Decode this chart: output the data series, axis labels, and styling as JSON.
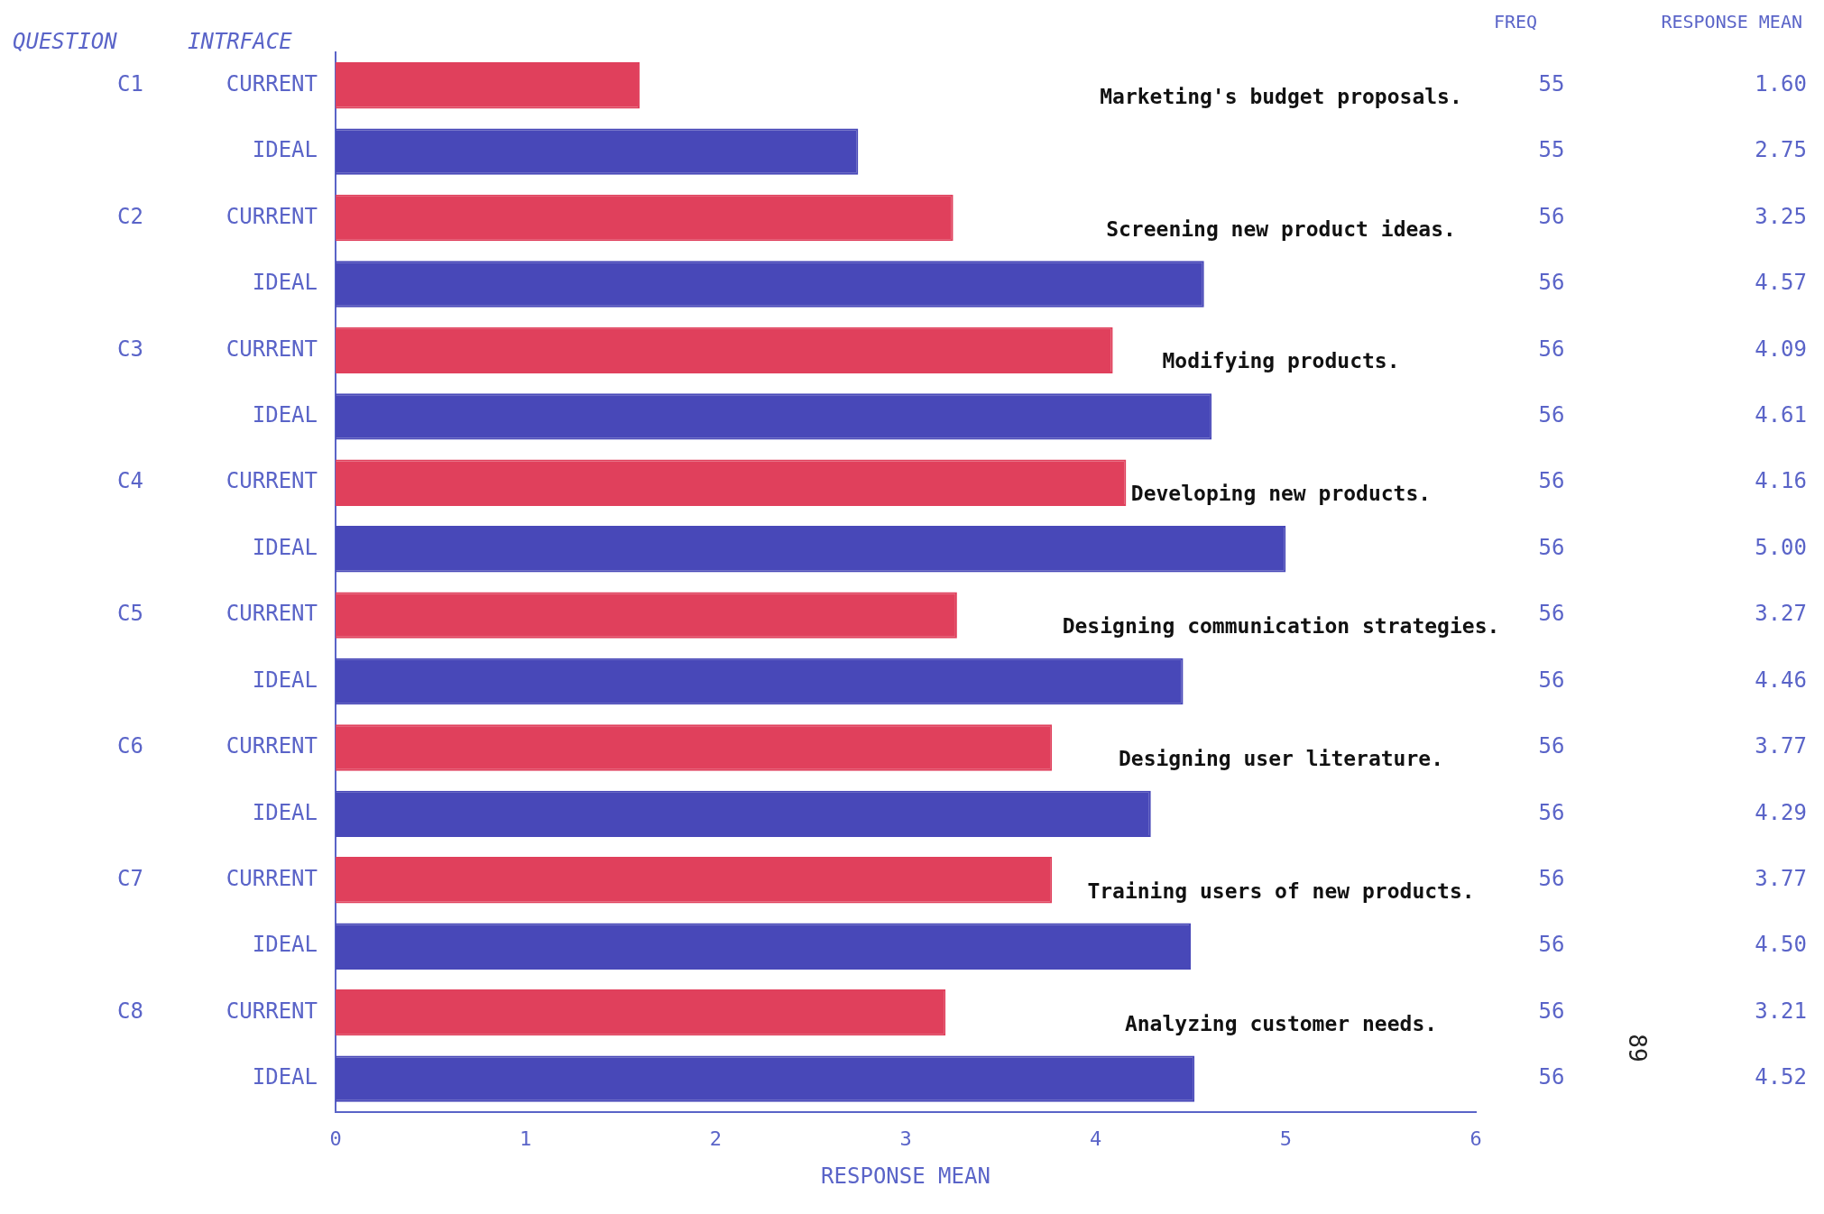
{
  "chart_data": {
    "type": "bar",
    "orientation": "horizontal",
    "xlabel": "RESPONSE MEAN",
    "categories": [
      "CURRENT",
      "IDEAL",
      "CURRENT",
      "IDEAL",
      "CURRENT",
      "IDEAL",
      "CURRENT",
      "IDEAL",
      "CURRENT",
      "IDEAL",
      "CURRENT",
      "IDEAL",
      "CURRENT",
      "IDEAL",
      "CURRENT",
      "IDEAL"
    ],
    "values": [
      1.6,
      2.75,
      3.25,
      4.57,
      4.09,
      4.61,
      4.16,
      5.0,
      3.27,
      4.46,
      3.77,
      4.29,
      3.77,
      4.5,
      3.21,
      4.52
    ],
    "colors": [
      "#e0405c",
      "#4848b8",
      "#e0405c",
      "#4848b8",
      "#e0405c",
      "#4848b8",
      "#e0405c",
      "#4848b8",
      "#e0405c",
      "#4848b8",
      "#e0405c",
      "#4848b8",
      "#e0405c",
      "#4848b8",
      "#e0405c",
      "#4848b8"
    ],
    "value_labels": [
      "1.60",
      "2.75",
      "3.25",
      "4.57",
      "4.09",
      "4.61",
      "4.16",
      "5.00",
      "3.27",
      "4.46",
      "3.77",
      "4.29",
      "3.77",
      "4.50",
      "3.21",
      "4.52"
    ],
    "xlim": [
      0,
      6
    ],
    "xticks": [
      0,
      1,
      2,
      3,
      4,
      5,
      6
    ],
    "grid": false,
    "legend": false,
    "annotations": [
      "QUESTION",
      "INTRFACE",
      "FREQ",
      "RESPONSE MEAN",
      "C1",
      "C2",
      "C3",
      "C4",
      "C5",
      "C6",
      "C7",
      "C8",
      "Marketing's budget proposals.",
      "Screening new product ideas.",
      "Modifying products.",
      "Developing new products.",
      "Designing communication strategies.",
      "Designing user literature.",
      "Training users of new products.",
      "Analyzing customer needs.",
      "55",
      "55",
      "56",
      "56",
      "56",
      "56",
      "56",
      "56",
      "56",
      "56",
      "56",
      "56",
      "56",
      "56",
      "56",
      "56",
      "89"
    ]
  }
}
